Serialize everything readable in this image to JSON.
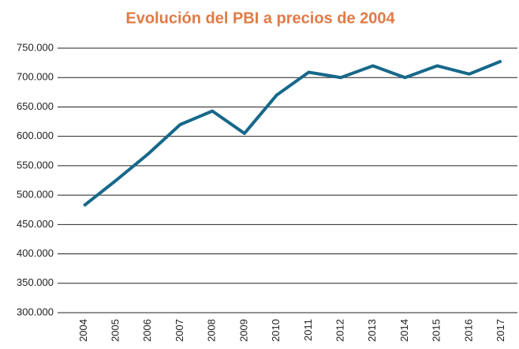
{
  "chart_data": {
    "type": "line",
    "title": "Evolución del PBI a precios de 2004",
    "categories": [
      "2004",
      "2005",
      "2006",
      "2007",
      "2008",
      "2009",
      "2010",
      "2011",
      "2012",
      "2013",
      "2014",
      "2015",
      "2016",
      "2017"
    ],
    "values": [
      482000,
      525000,
      570000,
      620000,
      643000,
      605000,
      670000,
      709000,
      700000,
      720000,
      700000,
      720000,
      706000,
      728000
    ],
    "color": "#17688a",
    "ylim": [
      300000,
      750000
    ],
    "yticks": [
      {
        "value": 300000,
        "label": "300.000"
      },
      {
        "value": 350000,
        "label": "350.000"
      },
      {
        "value": 400000,
        "label": "400.000"
      },
      {
        "value": 450000,
        "label": "450.000"
      },
      {
        "value": 500000,
        "label": "500.000"
      },
      {
        "value": 550000,
        "label": "550.000"
      },
      {
        "value": 600000,
        "label": "600.000"
      },
      {
        "value": 650000,
        "label": "650.000"
      },
      {
        "value": 700000,
        "label": "700.000"
      },
      {
        "value": 750000,
        "label": "750.000"
      }
    ],
    "grid": true
  }
}
